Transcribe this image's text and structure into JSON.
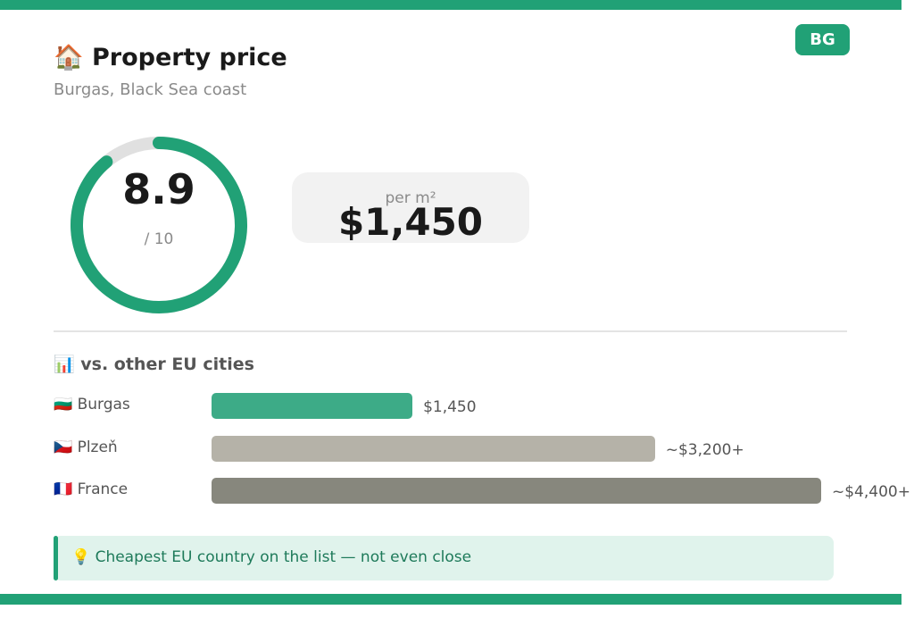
{
  "header": {
    "title": "🏠 Property price",
    "subtitle": "Burgas, Black Sea coast",
    "badge": "BG"
  },
  "score": {
    "value": 8.9,
    "max": {
      "value": 10,
      "label": "/ 10"
    },
    "color": "#21a176",
    "track_color": "#e0e0e0"
  },
  "price": {
    "caption": "per m²",
    "value": "$1,450"
  },
  "comparison": {
    "title": "📊 vs. other EU cities",
    "items": [
      {
        "name": "🇧🇬 Burgas",
        "value": 1450,
        "value_label": "$1,450",
        "color": "#3dab87"
      },
      {
        "name": "🇨🇿 Plzeň",
        "value": 3200,
        "value_label": "~$3,200+",
        "color": "#b5b2a8"
      },
      {
        "name": "🇫🇷 France",
        "value": 4400,
        "value_label": "~$4,400+",
        "color": "#87877d"
      }
    ]
  },
  "note": "💡 Cheapest EU country on the list — not even close"
}
